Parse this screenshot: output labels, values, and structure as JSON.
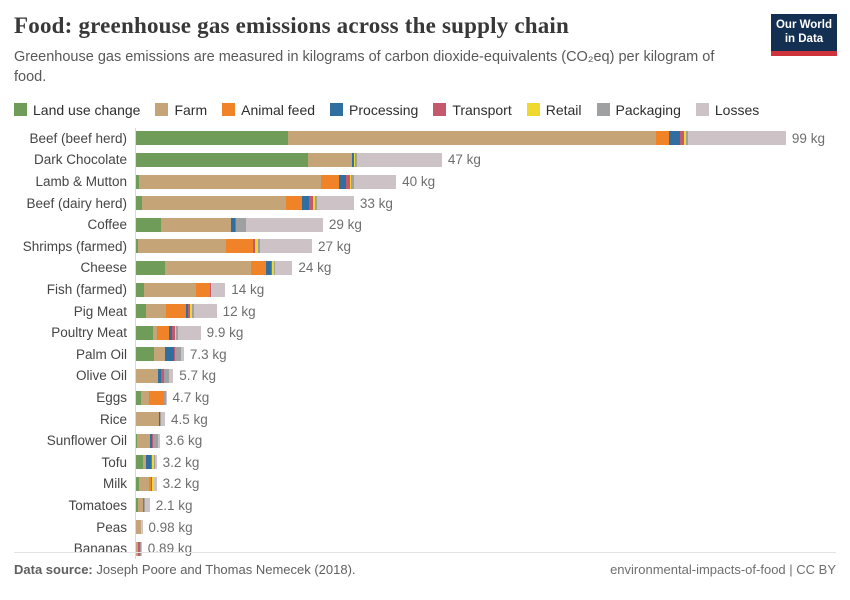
{
  "header": {
    "title": "Food: greenhouse gas emissions across the supply chain",
    "subtitle": "Greenhouse gas emissions are measured in kilograms of carbon dioxide-equivalents (CO₂eq) per kilogram of food.",
    "logo": {
      "line1": "Our World",
      "line2": "in Data",
      "bg_color": "#132F51",
      "stripe_color": "#CE323B"
    }
  },
  "footer": {
    "source_label": "Data source:",
    "source_text": " Joseph Poore and Thomas Nemecek (2018).",
    "right_text": "environmental-impacts-of-food | CC BY"
  },
  "chart_data": {
    "type": "bar",
    "stacked": true,
    "orientation": "horizontal",
    "unit": "kg CO₂eq per kilogram of food",
    "xlim": [
      0,
      100
    ],
    "grid": false,
    "legend_position": "top",
    "axis_line_color": "#d9d9d9",
    "series": [
      {
        "name": "Land use change",
        "color": "#6F9C58"
      },
      {
        "name": "Farm",
        "color": "#C5A478"
      },
      {
        "name": "Animal feed",
        "color": "#F08227"
      },
      {
        "name": "Processing",
        "color": "#2F6E9F"
      },
      {
        "name": "Transport",
        "color": "#C4596D"
      },
      {
        "name": "Retail",
        "color": "#EFD92F"
      },
      {
        "name": "Packaging",
        "color": "#9EA0A1"
      },
      {
        "name": "Losses",
        "color": "#CDC3C6"
      }
    ],
    "rows": [
      {
        "label": "Beef (beef herd)",
        "value_label": "99 kg",
        "segments": [
          23.2,
          56.2,
          1.9,
          1.8,
          0.6,
          0.25,
          0.35,
          14.9
        ]
      },
      {
        "label": "Dark Chocolate",
        "value_label": "47 kg",
        "segments": [
          26.3,
          6.7,
          0,
          0.2,
          0.14,
          0.04,
          0.41,
          12.9
        ]
      },
      {
        "label": "Lamb & Mutton",
        "value_label": "40 kg",
        "segments": [
          0.53,
          27.7,
          2.76,
          1.11,
          0.53,
          0.26,
          0.33,
          6.49
        ]
      },
      {
        "label": "Beef (dairy herd)",
        "value_label": "33 kg",
        "segments": [
          0.93,
          21.9,
          2.52,
          1.11,
          0.59,
          0.25,
          0.35,
          5.61
        ]
      },
      {
        "label": "Coffee",
        "value_label": "29 kg",
        "segments": [
          3.75,
          10.75,
          0,
          0.61,
          0.13,
          0.05,
          1.57,
          11.67
        ]
      },
      {
        "label": "Shrimps (farmed)",
        "value_label": "27 kg",
        "segments": [
          0.33,
          13.45,
          4.1,
          0,
          0.28,
          0.39,
          0.37,
          7.95
        ]
      },
      {
        "label": "Cheese",
        "value_label": "24 kg",
        "segments": [
          4.47,
          13.1,
          2.31,
          0.74,
          0.14,
          0.33,
          0.17,
          2.62
        ]
      },
      {
        "label": "Fish (farmed)",
        "value_label": "14 kg",
        "segments": [
          1.19,
          8.03,
          2.04,
          0.04,
          0.18,
          0.09,
          0.09,
          1.97
        ]
      },
      {
        "label": "Pig Meat",
        "value_label": "12 kg",
        "segments": [
          1.47,
          3.17,
          2.92,
          0.34,
          0.39,
          0.23,
          0.35,
          3.44
        ]
      },
      {
        "label": "Poultry Meat",
        "value_label": "9.9 kg",
        "segments": [
          2.53,
          0.71,
          1.82,
          0.49,
          0.34,
          0.23,
          0.25,
          3.5
        ]
      },
      {
        "label": "Palm Oil",
        "value_label": "7.3 kg",
        "segments": [
          2.73,
          1.74,
          0,
          1.27,
          0.19,
          0.04,
          0.85,
          0.5
        ]
      },
      {
        "label": "Olive Oil",
        "value_label": "5.7 kg",
        "segments": [
          0,
          3.35,
          0,
          0.45,
          0.45,
          0.04,
          0.75,
          0.66
        ]
      },
      {
        "label": "Eggs",
        "value_label": "4.7 kg",
        "segments": [
          0.71,
          1.32,
          2.19,
          0,
          0.09,
          0.04,
          0.16,
          0.15
        ]
      },
      {
        "label": "Rice",
        "value_label": "4.5 kg",
        "segments": [
          0,
          3.55,
          0,
          0.06,
          0.07,
          0.06,
          0.08,
          0.61
        ]
      },
      {
        "label": "Sunflower Oil",
        "value_label": "3.6 kg",
        "segments": [
          0.1,
          2.1,
          0,
          0.2,
          0.17,
          0.04,
          0.76,
          0.23
        ]
      },
      {
        "label": "Tofu",
        "value_label": "3.2 kg",
        "segments": [
          1.0,
          0.49,
          0,
          0.79,
          0.18,
          0.27,
          0.18,
          0.25
        ]
      },
      {
        "label": "Milk",
        "value_label": "3.2 kg",
        "segments": [
          0.46,
          1.51,
          0.25,
          0.15,
          0.09,
          0.27,
          0.1,
          0.33
        ]
      },
      {
        "label": "Tomatoes",
        "value_label": "2.1 kg",
        "segments": [
          0.37,
          0.71,
          0,
          0.01,
          0.18,
          0.02,
          0.15,
          0.66
        ]
      },
      {
        "label": "Peas",
        "value_label": "0.98 kg",
        "segments": [
          0,
          0.72,
          0,
          0,
          0.09,
          0.04,
          0.04,
          0.09
        ]
      },
      {
        "label": "Bananas",
        "value_label": "0.89 kg",
        "segments": [
          0,
          0.27,
          0,
          0.06,
          0.3,
          0.02,
          0.07,
          0.17
        ]
      }
    ]
  }
}
